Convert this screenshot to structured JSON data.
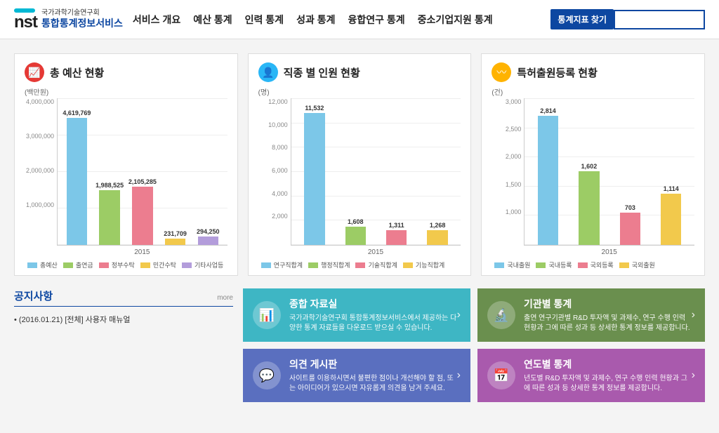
{
  "header": {
    "org": "국가과학기술연구회",
    "service": "통합통계정보서비스",
    "nav": [
      "서비스 개요",
      "예산 통계",
      "인력 통계",
      "성과 통계",
      "융합연구 통계",
      "중소기업지원 통계"
    ],
    "search_button": "통계지표 찾기",
    "search_placeholder": ""
  },
  "charts": [
    {
      "title": "총 예산 현황",
      "icon_bg": "#e53935",
      "icon_glyph": "📈",
      "unit": "(백만원)",
      "type": "bar",
      "ymax": 5000000,
      "yticks": [
        "4,000,000",
        "3,000,000",
        "2,000,000",
        "1,000,000",
        ""
      ],
      "x_label": "2015",
      "bars": [
        {
          "label": "4,619,769",
          "value": 4619769,
          "color": "#7cc7e8"
        },
        {
          "label": "1,988,525",
          "value": 1988525,
          "color": "#9ccc65"
        },
        {
          "label": "2,105,285",
          "value": 2105285,
          "color": "#ec7d8f"
        },
        {
          "label": "231,709",
          "value": 231709,
          "color": "#f2c94c"
        },
        {
          "label": "294,250",
          "value": 294250,
          "color": "#b39ddb"
        }
      ],
      "legend": [
        {
          "label": "총예산",
          "color": "#7cc7e8"
        },
        {
          "label": "출연금",
          "color": "#9ccc65"
        },
        {
          "label": "정부수탁",
          "color": "#ec7d8f"
        },
        {
          "label": "민간수탁",
          "color": "#f2c94c"
        },
        {
          "label": "기타사업등",
          "color": "#b39ddb"
        }
      ]
    },
    {
      "title": "직종 별 인원 현황",
      "icon_bg": "#29b6f6",
      "icon_glyph": "👤",
      "unit": "(명)",
      "type": "bar",
      "ymax": 12000,
      "yticks": [
        "12,000",
        "10,000",
        "8,000",
        "6,000",
        "4,000",
        "2,000",
        ""
      ],
      "x_label": "2015",
      "bars": [
        {
          "label": "11,532",
          "value": 11532,
          "color": "#7cc7e8"
        },
        {
          "label": "1,608",
          "value": 1608,
          "color": "#9ccc65"
        },
        {
          "label": "1,311",
          "value": 1311,
          "color": "#ec7d8f"
        },
        {
          "label": "1,268",
          "value": 1268,
          "color": "#f2c94c"
        }
      ],
      "legend": [
        {
          "label": "연구직합계",
          "color": "#7cc7e8"
        },
        {
          "label": "행정직합계",
          "color": "#9ccc65"
        },
        {
          "label": "기술직합계",
          "color": "#ec7d8f"
        },
        {
          "label": "기능직합계",
          "color": "#f2c94c"
        }
      ]
    },
    {
      "title": "특허출원등록 현황",
      "icon_bg": "#ffb300",
      "icon_glyph": "〰",
      "unit": "(건)",
      "type": "bar",
      "ymax": 3000,
      "yticks": [
        "3,000",
        "2,500",
        "2,000",
        "1,500",
        "1,000",
        ""
      ],
      "x_label": "2015",
      "bars": [
        {
          "label": "2,814",
          "value": 2814,
          "color": "#7cc7e8"
        },
        {
          "label": "1,602",
          "value": 1602,
          "color": "#9ccc65"
        },
        {
          "label": "703",
          "value": 703,
          "color": "#ec7d8f"
        },
        {
          "label": "1,114",
          "value": 1114,
          "color": "#f2c94c"
        }
      ],
      "legend": [
        {
          "label": "국내출원",
          "color": "#7cc7e8"
        },
        {
          "label": "국내등록",
          "color": "#9ccc65"
        },
        {
          "label": "국외등록",
          "color": "#ec7d8f"
        },
        {
          "label": "국외출원",
          "color": "#f2c94c"
        }
      ]
    }
  ],
  "notice": {
    "title": "공지사항",
    "more": "more",
    "items": [
      "(2016.01.21) [전체] 사용자 매뉴얼"
    ]
  },
  "tiles": [
    {
      "glyph": "📊",
      "bg": "#3eb6c4",
      "title": "종합 자료실",
      "desc": "국가과학기술연구회 통합통계정보서비스에서 제공하는 다양한 통계 자료들을 다운로드 받으실 수 있습니다."
    },
    {
      "glyph": "🔬",
      "bg": "#6a8f4e",
      "title": "기관별 통계",
      "desc": "출연 연구기관별 R&D 투자액 및 과제수, 연구 수행 인력 현황과 그에 따른 성과 등 상세한 통계 정보를 제공합니다."
    },
    {
      "glyph": "💬",
      "bg": "#5a6fbf",
      "title": "의견 게시판",
      "desc": "사이트를 이용하시면서 불편한 점이나 개선해야 할 점, 또는 아이디어가 있으시면 자유롭게 의견을 남겨 주세요."
    },
    {
      "glyph": "📅",
      "bg": "#a95aad",
      "title": "연도별 통계",
      "desc": "년도별 R&D 투자액 및 과제수, 연구 수행 인력 현황과 그에 따른 성과 등 상세한 통계 정보를 제공합니다."
    }
  ]
}
